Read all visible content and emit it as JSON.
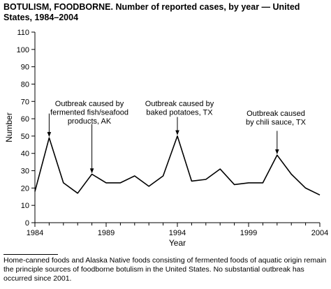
{
  "title": {
    "bold": "BOTULISM, FOODBORNE.",
    "rest": "Number of reported cases, by year — United States, 1984–2004"
  },
  "footnote": "Home-canned foods and Alaska Native foods consisting of fermented foods of aquatic origin remain the principle sources of foodborne botulism in the United States. No substantial outbreak has occurred since 2001.",
  "chart_data": {
    "type": "line",
    "xlabel": "Year",
    "ylabel": "Number",
    "xlim": [
      1984,
      2004
    ],
    "ylim": [
      0,
      110
    ],
    "yticks": [
      0,
      10,
      20,
      30,
      40,
      50,
      60,
      70,
      80,
      90,
      100,
      110
    ],
    "xtick_labels": [
      1984,
      1989,
      1994,
      1999,
      2004
    ],
    "grid": false,
    "line_color": "#000000",
    "series": [
      {
        "x": [
          1984,
          1985,
          1986,
          1987,
          1988,
          1989,
          1990,
          1991,
          1992,
          1993,
          1994,
          1995,
          1996,
          1997,
          1998,
          1999,
          2000,
          2001,
          2002,
          2003,
          2004
        ],
        "y": [
          18,
          49,
          23,
          17,
          28,
          23,
          23,
          27,
          21,
          27,
          50,
          24,
          25,
          31,
          22,
          23,
          23,
          39,
          28,
          20,
          16
        ]
      }
    ],
    "annotations": [
      {
        "lines": [
          "Outbreak caused by",
          "fermented fish/seafood",
          "products, AK"
        ],
        "year": 1985,
        "value": 49,
        "arrow_top": 63
      },
      {
        "lines": [
          "Outbreak caused by",
          "fermented fish/seafood",
          "products, AK"
        ],
        "year": 1988,
        "value": 28,
        "arrow_top": 57,
        "arrow_only": true
      },
      {
        "lines": [
          "Outbreak caused by",
          "baked potatoes, TX"
        ],
        "year": 1994,
        "value": 50,
        "arrow_top": 61
      },
      {
        "lines": [
          "Outbreak caused",
          "by chili sauce, TX"
        ],
        "year": 2001,
        "value": 39,
        "arrow_top": 53
      }
    ]
  }
}
